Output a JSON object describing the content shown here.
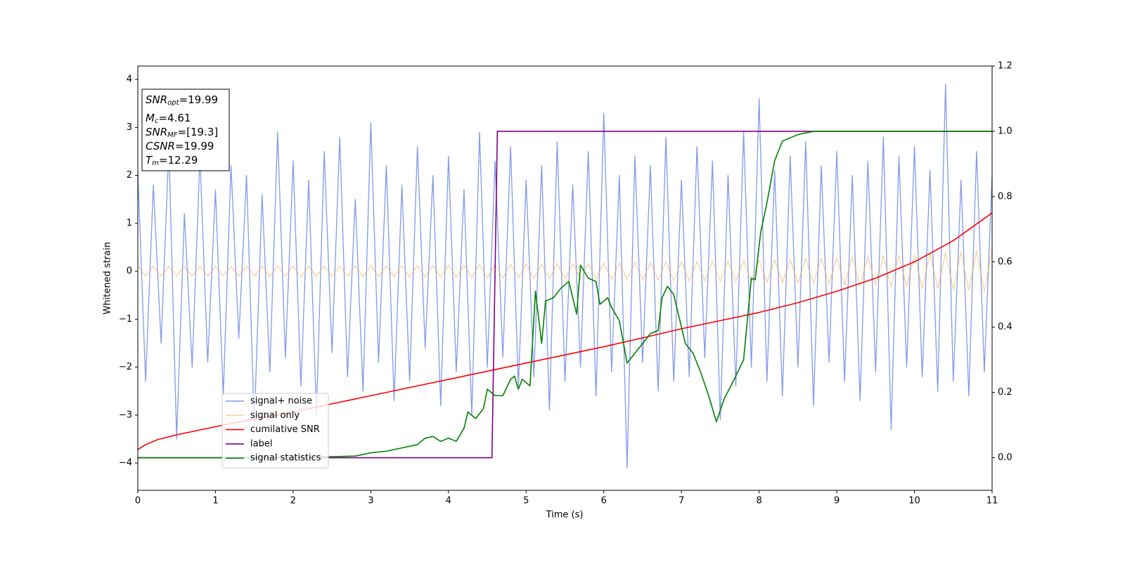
{
  "chart_data": {
    "type": "line",
    "xlabel": "Time (s)",
    "ylabel": "Whitened strain",
    "xlim": [
      0,
      11
    ],
    "xticks": [
      0,
      1,
      2,
      3,
      4,
      5,
      6,
      7,
      8,
      9,
      10,
      11
    ],
    "ylim": [
      -4.57,
      4.28
    ],
    "yticks": [
      {
        "value": -4,
        "label": "−4"
      },
      {
        "value": -3,
        "label": "−3"
      },
      {
        "value": -2,
        "label": "−2"
      },
      {
        "value": -1,
        "label": "−1"
      },
      0,
      1,
      2,
      3,
      4
    ],
    "y2lim": [
      -0.1,
      1.2
    ],
    "y2ticks": [
      {
        "value": 0,
        "label": "0.0"
      },
      {
        "value": 0.2,
        "label": "0.2"
      },
      {
        "value": 0.4,
        "label": "0.4"
      },
      {
        "value": 0.6,
        "label": "0.6"
      },
      {
        "value": 0.8,
        "label": "0.8"
      },
      {
        "value": 1.0,
        "label": "1.0"
      },
      {
        "value": 1.2,
        "label": "1.2"
      }
    ],
    "x": [
      0,
      0.1,
      0.2,
      0.3,
      0.4,
      0.5,
      0.6,
      0.7,
      0.8,
      0.9,
      1,
      1.1,
      1.2,
      1.3,
      1.4,
      1.5,
      1.6,
      1.7,
      1.8,
      1.9,
      2,
      2.1,
      2.2,
      2.3,
      2.4,
      2.5,
      2.6,
      2.7,
      2.8,
      2.9,
      3,
      3.1,
      3.2,
      3.3,
      3.4,
      3.5,
      3.6,
      3.7,
      3.8,
      3.9,
      4,
      4.1,
      4.2,
      4.3,
      4.4,
      4.5,
      4.6,
      4.7,
      4.8,
      4.9,
      5,
      5.1,
      5.2,
      5.3,
      5.4,
      5.5,
      5.6,
      5.7,
      5.8,
      5.9,
      6,
      6.1,
      6.2,
      6.3,
      6.4,
      6.5,
      6.6,
      6.7,
      6.8,
      6.9,
      7,
      7.1,
      7.2,
      7.3,
      7.4,
      7.5,
      7.6,
      7.7,
      7.8,
      7.9,
      8,
      8.1,
      8.2,
      8.3,
      8.4,
      8.5,
      8.6,
      8.7,
      8.8,
      8.9,
      9,
      9.1,
      9.2,
      9.3,
      9.4,
      9.5,
      9.6,
      9.7,
      9.8,
      9.9,
      10,
      10.1,
      10.2,
      10.3,
      10.4,
      10.5,
      10.6,
      10.7,
      10.8,
      10.9,
      11
    ],
    "series": [
      {
        "name": "signal+ noise",
        "color": "#7a95e8",
        "values": [
          2.1,
          -2.3,
          1.8,
          -1.5,
          2.6,
          -3.5,
          1.2,
          -2.0,
          2.4,
          -1.9,
          1.7,
          -2.6,
          2.2,
          -1.4,
          2.0,
          -3.2,
          1.6,
          -2.1,
          2.9,
          -1.8,
          2.3,
          -2.4,
          1.9,
          -3.0,
          2.5,
          -1.7,
          2.8,
          -2.2,
          1.5,
          -2.5,
          3.1,
          -1.9,
          2.2,
          -2.7,
          1.8,
          -2.3,
          2.6,
          -1.6,
          2.0,
          -2.8,
          2.4,
          -2.1,
          1.7,
          -3.0,
          2.9,
          -2.0,
          2.3,
          -1.8,
          2.6,
          -2.4,
          1.9,
          -2.2,
          2.2,
          -2.9,
          2.7,
          -2.3,
          1.8,
          -2.0,
          2.5,
          -2.6,
          3.3,
          -2.1,
          2.0,
          -4.1,
          2.4,
          -1.9,
          2.2,
          -2.5,
          2.8,
          -2.3,
          1.9,
          -2.2,
          2.6,
          -1.8,
          2.3,
          -3.1,
          2.0,
          -2.4,
          2.9,
          -2.0,
          3.6,
          -2.3,
          2.1,
          -2.6,
          2.4,
          -2.0,
          2.7,
          -2.8,
          2.2,
          -1.9,
          2.5,
          -2.3,
          2.0,
          -2.7,
          2.3,
          -2.1,
          2.8,
          -3.3,
          2.4,
          -2.0,
          2.6,
          -2.2,
          2.1,
          -2.5,
          3.9,
          -2.3,
          1.9,
          -2.6,
          2.5,
          -2.1,
          2.0
        ]
      },
      {
        "name": "signal only",
        "color": "#f5b35a",
        "values": [
          0.1,
          -0.1,
          0.1,
          -0.1,
          0.1,
          -0.1,
          0.1,
          -0.1,
          0.1,
          -0.1,
          0.1,
          -0.1,
          0.1,
          -0.1,
          0.1,
          -0.1,
          0.11,
          -0.11,
          0.11,
          -0.11,
          0.11,
          -0.11,
          0.11,
          -0.11,
          0.11,
          -0.11,
          0.11,
          -0.11,
          0.11,
          -0.11,
          0.12,
          -0.12,
          0.12,
          -0.12,
          0.12,
          -0.12,
          0.12,
          -0.12,
          0.12,
          -0.12,
          0.13,
          -0.13,
          0.13,
          -0.13,
          0.14,
          -0.14,
          0.14,
          -0.14,
          0.14,
          -0.14,
          0.15,
          -0.15,
          0.15,
          -0.15,
          0.16,
          -0.16,
          0.16,
          -0.16,
          0.16,
          -0.16,
          0.17,
          -0.17,
          0.17,
          -0.17,
          0.18,
          -0.18,
          0.18,
          -0.18,
          0.19,
          -0.19,
          0.2,
          -0.2,
          0.2,
          -0.2,
          0.21,
          -0.21,
          0.21,
          -0.21,
          0.22,
          -0.22,
          0.23,
          -0.23,
          0.24,
          -0.24,
          0.25,
          -0.25,
          0.26,
          -0.26,
          0.27,
          -0.27,
          0.28,
          -0.28,
          0.29,
          -0.29,
          0.3,
          -0.3,
          0.32,
          -0.32,
          0.33,
          -0.33,
          0.35,
          -0.35,
          0.36,
          -0.36,
          0.38,
          -0.38,
          0.4,
          -0.4,
          0.42,
          -0.42,
          0.46
        ]
      },
      {
        "name": "cumilative SNR",
        "color": "#ff0000",
        "axis": "y2",
        "x": [
          0,
          0.1,
          0.25,
          0.5,
          1,
          1.5,
          2,
          2.5,
          3,
          3.5,
          4,
          4.5,
          5,
          5.5,
          6,
          6.5,
          7,
          7.5,
          8,
          8.5,
          9,
          9.5,
          10,
          10.5,
          11
        ],
        "values": [
          0.025,
          0.04,
          0.055,
          0.07,
          0.095,
          0.118,
          0.14,
          0.165,
          0.19,
          0.215,
          0.24,
          0.265,
          0.29,
          0.315,
          0.34,
          0.367,
          0.395,
          0.42,
          0.445,
          0.475,
          0.51,
          0.55,
          0.6,
          0.665,
          0.75
        ]
      },
      {
        "name": "label",
        "color": "#800080",
        "axis": "y2",
        "x": [
          0,
          4.56,
          4.63,
          11
        ],
        "values": [
          0,
          0,
          1,
          1
        ]
      },
      {
        "name": "signal statistics",
        "color": "#008000",
        "axis": "y2",
        "x": [
          0,
          0.5,
          1,
          2,
          2.8,
          3.0,
          3.2,
          3.4,
          3.6,
          3.7,
          3.8,
          3.9,
          4.0,
          4.1,
          4.2,
          4.25,
          4.35,
          4.45,
          4.5,
          4.6,
          4.7,
          4.8,
          4.85,
          4.9,
          4.95,
          5.05,
          5.12,
          5.2,
          5.25,
          5.35,
          5.45,
          5.55,
          5.65,
          5.7,
          5.8,
          5.9,
          5.95,
          6.05,
          6.1,
          6.2,
          6.3,
          6.4,
          6.5,
          6.6,
          6.7,
          6.75,
          6.82,
          6.9,
          7.0,
          7.05,
          7.15,
          7.25,
          7.35,
          7.45,
          7.55,
          7.7,
          7.8,
          7.9,
          7.95,
          8.02,
          8.1,
          8.2,
          8.3,
          8.5,
          8.7,
          9.5,
          11
        ],
        "values": [
          0,
          0,
          0,
          0,
          0.005,
          0.015,
          0.02,
          0.03,
          0.04,
          0.06,
          0.065,
          0.05,
          0.06,
          0.05,
          0.09,
          0.14,
          0.12,
          0.15,
          0.21,
          0.19,
          0.19,
          0.24,
          0.25,
          0.21,
          0.24,
          0.22,
          0.51,
          0.35,
          0.48,
          0.49,
          0.52,
          0.54,
          0.44,
          0.59,
          0.55,
          0.54,
          0.47,
          0.49,
          0.46,
          0.42,
          0.29,
          0.32,
          0.35,
          0.38,
          0.39,
          0.49,
          0.525,
          0.5,
          0.4,
          0.35,
          0.32,
          0.26,
          0.19,
          0.11,
          0.18,
          0.25,
          0.3,
          0.55,
          0.545,
          0.69,
          0.78,
          0.91,
          0.97,
          0.99,
          1.0,
          1.0,
          1.0
        ]
      }
    ],
    "annotations": [
      {
        "name": "SNR",
        "subscript": "opt",
        "value": "=19.99"
      },
      {
        "name": "M",
        "subscript": "c",
        "value": "=4.61"
      },
      {
        "name": "SNR",
        "subscript": "MF",
        "value": "=[19.3]"
      },
      {
        "name": "CSNR",
        "value": "=19.99"
      },
      {
        "name": "T",
        "subscript": "m",
        "value": "=12.29"
      }
    ]
  }
}
